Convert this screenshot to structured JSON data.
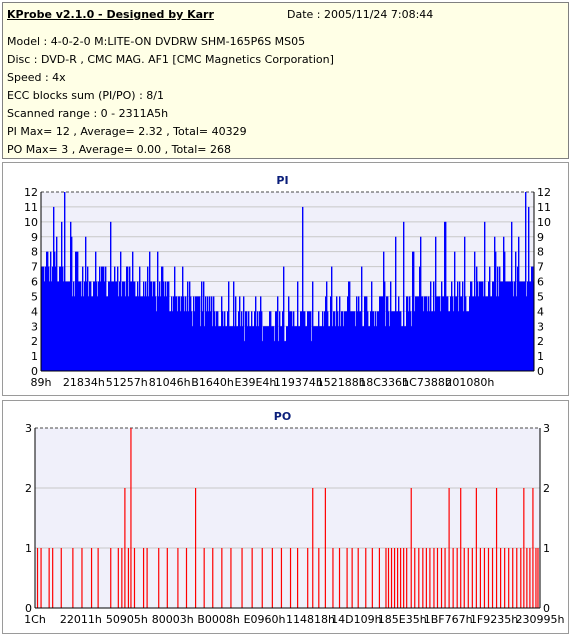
{
  "info": {
    "title": "KProbe v2.1.0 - Designed by Karr",
    "date": "Date : 2005/11/24 7:08:44",
    "model": "Model : 4-0-2-0 M:LITE-ON DVDRW SHM-165P6S MS05",
    "disc": "Disc : DVD-R , CMC MAG. AF1 [CMC Magnetics Corporation]",
    "speed": "Speed : 4x",
    "ecc": "ECC blocks sum (PI/PO) : 8/1",
    "range": "Scanned range : 0 - 2311A5h",
    "pi_stats": "PI Max= 12 , Average= 2.32 , Total= 40329",
    "po_stats": "PO Max= 3 , Average= 0.00 , Total= 268"
  },
  "colors": {
    "info_bg": "#ffffe6",
    "plot_bg": "#f0f0fa",
    "pi_bars": "#0000ff",
    "po_bars": "#ff0000",
    "title_text": "#0a1e7a",
    "max_line": "#4a4a4a",
    "grid_line": "#c8c8c8"
  },
  "chart_data": [
    {
      "type": "bar",
      "title": "PI",
      "ylim": [
        0,
        12
      ],
      "y_ticks": [
        0,
        1,
        2,
        3,
        4,
        5,
        6,
        7,
        8,
        9,
        10,
        11,
        12
      ],
      "x_tick_labels": [
        "89h",
        "21834h",
        "51257h",
        "81046h",
        "B1640h",
        "E39E4h",
        "119374h",
        "152188h",
        "18C336h",
        "1C7388h",
        "201080h"
      ],
      "y_axis_both_sides": true,
      "grid": true,
      "max": 12,
      "average": 2.32,
      "total": 40329,
      "profile": [
        [
          0,
          7
        ],
        [
          0.02,
          7
        ],
        [
          0.05,
          6
        ],
        [
          0.1,
          6
        ],
        [
          0.15,
          6
        ],
        [
          0.2,
          5.5
        ],
        [
          0.25,
          5
        ],
        [
          0.3,
          4.5
        ],
        [
          0.35,
          4
        ],
        [
          0.4,
          3.5
        ],
        [
          0.45,
          3.5
        ],
        [
          0.5,
          3.5
        ],
        [
          0.55,
          3.5
        ],
        [
          0.6,
          3.5
        ],
        [
          0.65,
          4
        ],
        [
          0.7,
          4
        ],
        [
          0.75,
          4.5
        ],
        [
          0.8,
          5
        ],
        [
          0.85,
          5
        ],
        [
          0.9,
          5.5
        ],
        [
          0.95,
          6
        ],
        [
          1,
          6
        ]
      ],
      "peaks": [
        [
          0.012,
          8
        ],
        [
          0.025,
          11
        ],
        [
          0.03,
          9
        ],
        [
          0.04,
          10
        ],
        [
          0.047,
          12
        ],
        [
          0.06,
          9
        ],
        [
          0.07,
          8
        ],
        [
          0.09,
          9
        ],
        [
          0.11,
          8
        ],
        [
          0.125,
          7
        ],
        [
          0.14,
          10
        ],
        [
          0.16,
          8
        ],
        [
          0.185,
          8
        ],
        [
          0.2,
          7
        ],
        [
          0.22,
          8
        ],
        [
          0.245,
          7
        ],
        [
          0.27,
          6
        ],
        [
          0.3,
          6
        ],
        [
          0.325,
          6
        ],
        [
          0.35,
          5
        ],
        [
          0.38,
          6
        ],
        [
          0.41,
          5
        ],
        [
          0.445,
          5
        ],
        [
          0.48,
          5
        ],
        [
          0.52,
          6
        ],
        [
          0.53,
          11
        ],
        [
          0.55,
          6
        ],
        [
          0.58,
          6
        ],
        [
          0.6,
          5
        ],
        [
          0.625,
          6
        ],
        [
          0.65,
          7
        ],
        [
          0.67,
          6
        ],
        [
          0.695,
          7
        ],
        [
          0.72,
          9
        ],
        [
          0.735,
          10
        ],
        [
          0.755,
          8
        ],
        [
          0.77,
          9
        ],
        [
          0.8,
          9
        ],
        [
          0.82,
          10
        ],
        [
          0.84,
          8
        ],
        [
          0.86,
          9
        ],
        [
          0.88,
          8
        ],
        [
          0.9,
          10
        ],
        [
          0.92,
          9
        ],
        [
          0.94,
          8
        ],
        [
          0.955,
          10
        ],
        [
          0.97,
          9
        ],
        [
          0.983,
          12
        ],
        [
          0.99,
          11
        ]
      ]
    },
    {
      "type": "bar",
      "title": "PO",
      "ylim": [
        0,
        3
      ],
      "y_ticks": [
        0,
        1,
        2,
        3
      ],
      "x_tick_labels": [
        "1Ch",
        "22011h",
        "50905h",
        "80003h",
        "B0008h",
        "E0960h",
        "114818h",
        "14D109h",
        "185E35h",
        "1BF767h",
        "1F9235h",
        "230995h"
      ],
      "y_axis_both_sides": true,
      "grid": true,
      "max": 3,
      "average": 0.0,
      "total": 268,
      "bars": [
        [
          0.005,
          1
        ],
        [
          0.012,
          1
        ],
        [
          0.028,
          1
        ],
        [
          0.035,
          1
        ],
        [
          0.052,
          1
        ],
        [
          0.075,
          1
        ],
        [
          0.093,
          1
        ],
        [
          0.112,
          1
        ],
        [
          0.125,
          1
        ],
        [
          0.15,
          1
        ],
        [
          0.165,
          1
        ],
        [
          0.172,
          1
        ],
        [
          0.178,
          2
        ],
        [
          0.185,
          1
        ],
        [
          0.19,
          3
        ],
        [
          0.197,
          1
        ],
        [
          0.215,
          1
        ],
        [
          0.222,
          1
        ],
        [
          0.245,
          1
        ],
        [
          0.262,
          1
        ],
        [
          0.283,
          1
        ],
        [
          0.3,
          1
        ],
        [
          0.318,
          2
        ],
        [
          0.335,
          1
        ],
        [
          0.352,
          1
        ],
        [
          0.37,
          1
        ],
        [
          0.388,
          1
        ],
        [
          0.41,
          1
        ],
        [
          0.43,
          1
        ],
        [
          0.45,
          1
        ],
        [
          0.47,
          1
        ],
        [
          0.488,
          1
        ],
        [
          0.506,
          1
        ],
        [
          0.52,
          1
        ],
        [
          0.54,
          1
        ],
        [
          0.55,
          2
        ],
        [
          0.562,
          1
        ],
        [
          0.575,
          2
        ],
        [
          0.59,
          1
        ],
        [
          0.603,
          1
        ],
        [
          0.618,
          1
        ],
        [
          0.628,
          1
        ],
        [
          0.64,
          1
        ],
        [
          0.655,
          1
        ],
        [
          0.668,
          1
        ],
        [
          0.682,
          1
        ],
        [
          0.695,
          1
        ],
        [
          0.7,
          1
        ],
        [
          0.706,
          1
        ],
        [
          0.712,
          1
        ],
        [
          0.718,
          1
        ],
        [
          0.724,
          1
        ],
        [
          0.73,
          1
        ],
        [
          0.736,
          1
        ],
        [
          0.745,
          2
        ],
        [
          0.752,
          1
        ],
        [
          0.76,
          1
        ],
        [
          0.768,
          1
        ],
        [
          0.775,
          1
        ],
        [
          0.782,
          1
        ],
        [
          0.79,
          1
        ],
        [
          0.797,
          1
        ],
        [
          0.805,
          1
        ],
        [
          0.812,
          1
        ],
        [
          0.82,
          2
        ],
        [
          0.828,
          1
        ],
        [
          0.836,
          1
        ],
        [
          0.843,
          2
        ],
        [
          0.85,
          1
        ],
        [
          0.858,
          1
        ],
        [
          0.866,
          1
        ],
        [
          0.874,
          2
        ],
        [
          0.882,
          1
        ],
        [
          0.89,
          1
        ],
        [
          0.898,
          1
        ],
        [
          0.906,
          1
        ],
        [
          0.914,
          2
        ],
        [
          0.922,
          1
        ],
        [
          0.93,
          1
        ],
        [
          0.938,
          1
        ],
        [
          0.946,
          1
        ],
        [
          0.954,
          1
        ],
        [
          0.962,
          1
        ],
        [
          0.968,
          2
        ],
        [
          0.974,
          1
        ],
        [
          0.98,
          1
        ],
        [
          0.986,
          2
        ],
        [
          0.992,
          1
        ],
        [
          0.996,
          1
        ]
      ]
    }
  ]
}
